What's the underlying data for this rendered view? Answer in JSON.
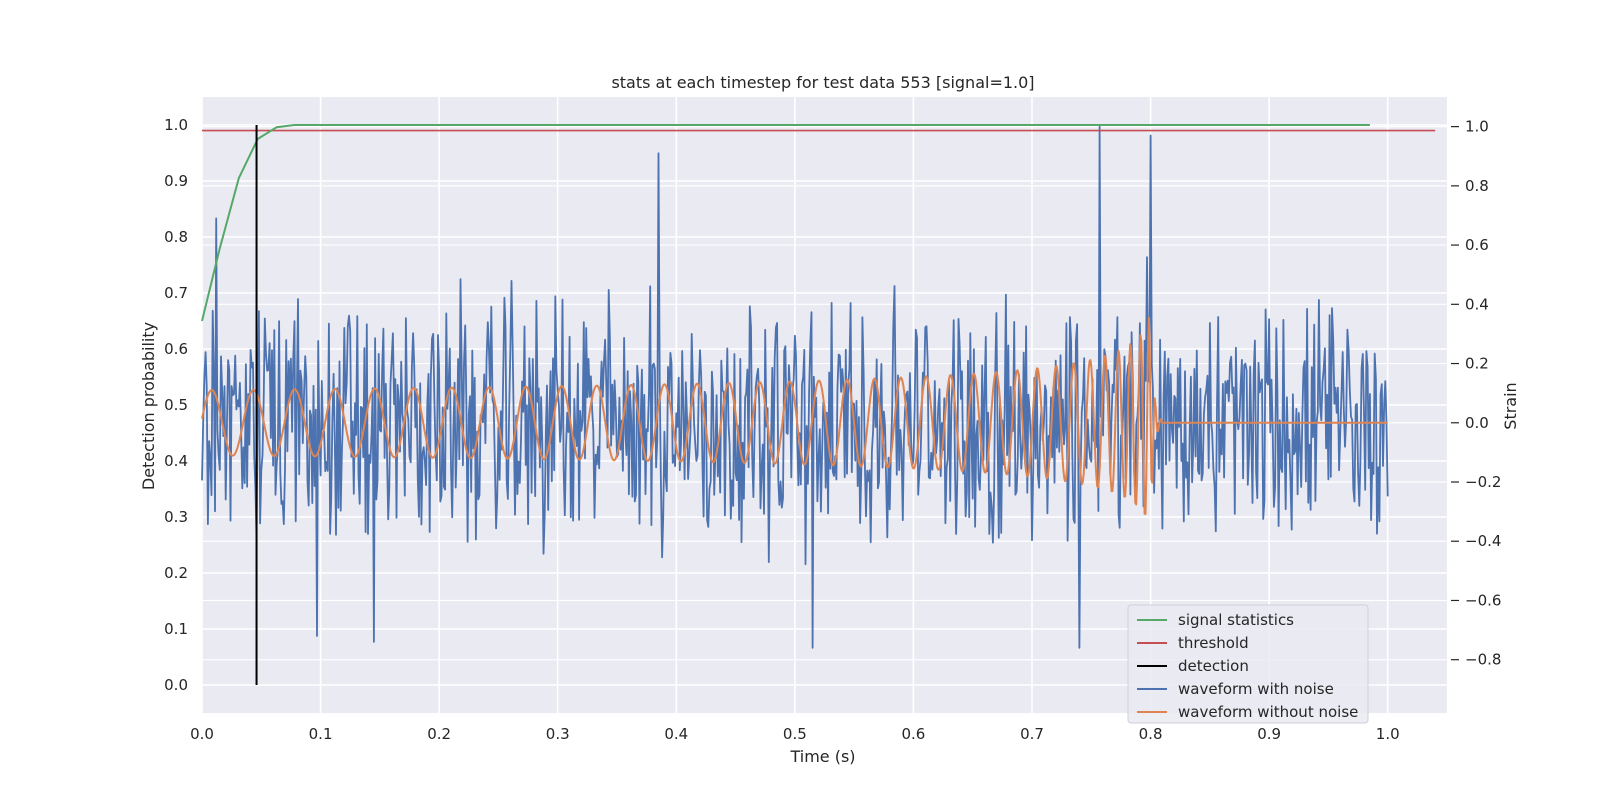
{
  "chart_data": {
    "type": "line",
    "title": "stats at each timestep for test data 553 [signal=1.0]",
    "xlabel": "Time (s)",
    "ylabel_left": "Detection probability",
    "ylabel_right": "Strain",
    "xlim": [
      0.0,
      1.05
    ],
    "ylim_left": [
      -0.05,
      1.05
    ],
    "ylim_right": [
      -0.98,
      1.1
    ],
    "x_ticks": [
      0.0,
      0.1,
      0.2,
      0.3,
      0.4,
      0.5,
      0.6,
      0.7,
      0.8,
      0.9,
      1.0
    ],
    "x_tick_labels": [
      "0.0",
      "0.1",
      "0.2",
      "0.3",
      "0.4",
      "0.5",
      "0.6",
      "0.7",
      "0.8",
      "0.9",
      "1.0"
    ],
    "y_left_ticks": [
      0.0,
      0.1,
      0.2,
      0.3,
      0.4,
      0.5,
      0.6,
      0.7,
      0.8,
      0.9,
      1.0
    ],
    "y_left_tick_labels": [
      "0.0",
      "0.1",
      "0.2",
      "0.3",
      "0.4",
      "0.5",
      "0.6",
      "0.7",
      "0.8",
      "0.9",
      "1.0"
    ],
    "y_right_ticks": [
      1.0,
      0.8,
      0.6,
      0.4,
      0.2,
      0.0,
      -0.2,
      -0.4,
      -0.6,
      -0.8
    ],
    "y_right_tick_labels": [
      "1.0",
      "0.8",
      "0.6",
      "0.4",
      "0.2",
      "0.0",
      "−0.2",
      "−0.4",
      "−0.6",
      "−0.8"
    ],
    "grid": true,
    "legend_position": "bottom-right",
    "series": [
      {
        "name": "signal statistics",
        "axis": "left",
        "color": "#55a868",
        "x": [
          0.0,
          0.015,
          0.031,
          0.047,
          0.063,
          0.078,
          0.094,
          0.2,
          0.4,
          0.6,
          0.8,
          0.985
        ],
        "y": [
          0.65,
          0.78,
          0.905,
          0.975,
          0.996,
          1.0,
          1.0,
          1.0,
          1.0,
          1.0,
          1.0,
          1.0
        ]
      },
      {
        "name": "threshold",
        "axis": "left",
        "color": "#c44e52",
        "x": [
          0.0,
          1.04
        ],
        "y": [
          0.99,
          0.99
        ]
      },
      {
        "name": "detection",
        "axis": "left",
        "color": "#000000",
        "x": [
          0.046,
          0.046
        ],
        "y": [
          0.0,
          1.0
        ]
      },
      {
        "name": "waveform with noise",
        "axis": "right",
        "color": "#4c72b0",
        "x_range": [
          0.0,
          1.0
        ],
        "peaks": [
          {
            "x": 0.012,
            "y": 0.69
          },
          {
            "x": 0.385,
            "y": 0.91
          },
          {
            "x": 0.757,
            "y": 1.0
          },
          {
            "x": 0.8,
            "y": 0.97
          },
          {
            "x": 0.097,
            "y": -0.72
          },
          {
            "x": 0.145,
            "y": -0.74
          },
          {
            "x": 0.515,
            "y": -0.76
          },
          {
            "x": 0.74,
            "y": -0.76
          }
        ]
      },
      {
        "name": "waveform without noise",
        "axis": "right",
        "color": "#dd8452",
        "x_range": [
          0.0,
          1.0
        ],
        "amplitude_start": 0.11,
        "amplitude_peak": 0.36,
        "merger_time": 0.8,
        "ringdown_end": 0.81
      }
    ],
    "legend": [
      "signal statistics",
      "threshold",
      "detection",
      "waveform with noise",
      "waveform without noise"
    ]
  }
}
